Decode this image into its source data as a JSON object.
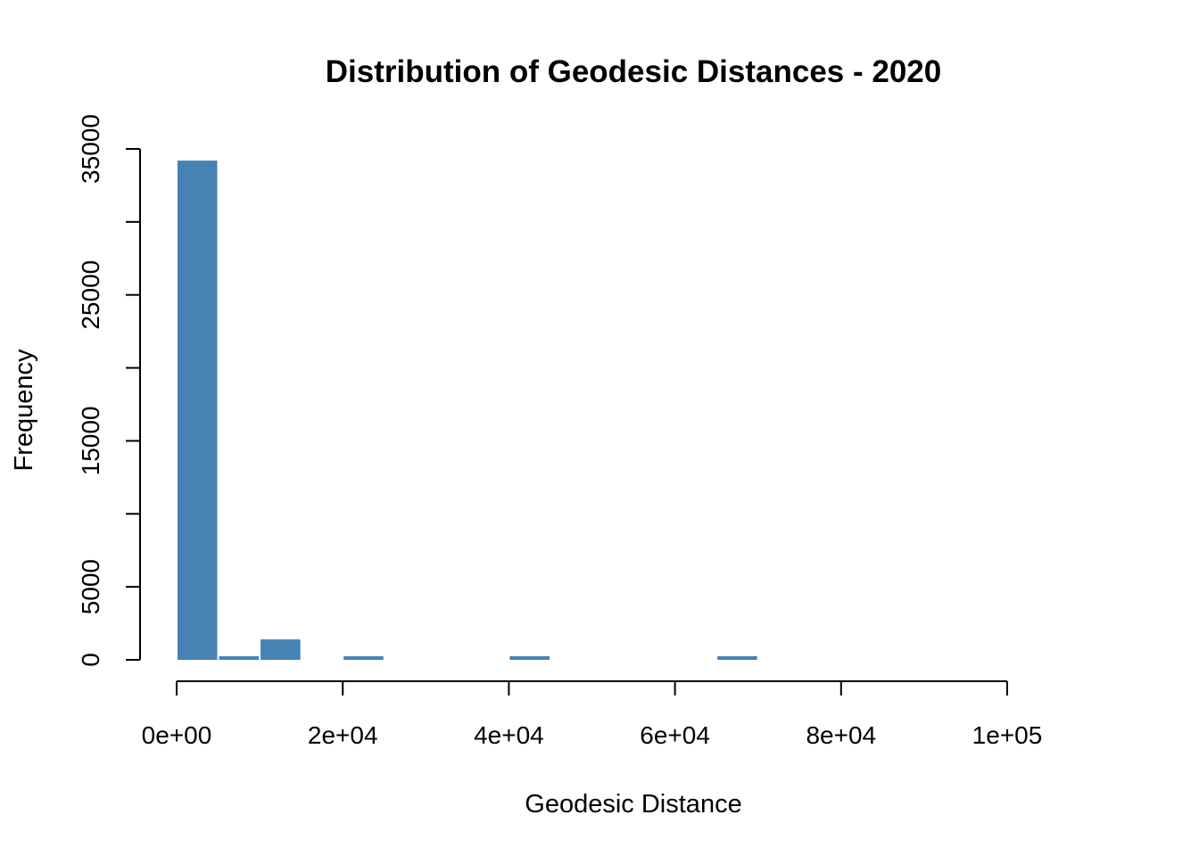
{
  "chart_data": {
    "type": "bar",
    "title": "Distribution of Geodesic Distances - 2020",
    "xlabel": "Geodesic Distance",
    "ylabel": "Frequency",
    "bar_color": "#4682B4",
    "bin_width": 5000,
    "bins": [
      {
        "start": 0,
        "end": 5000,
        "count": 34200
      },
      {
        "start": 5000,
        "end": 10000,
        "count": 250
      },
      {
        "start": 10000,
        "end": 15000,
        "count": 1400
      },
      {
        "start": 15000,
        "end": 20000,
        "count": 0
      },
      {
        "start": 20000,
        "end": 25000,
        "count": 250
      },
      {
        "start": 25000,
        "end": 30000,
        "count": 0
      },
      {
        "start": 30000,
        "end": 35000,
        "count": 0
      },
      {
        "start": 35000,
        "end": 40000,
        "count": 0
      },
      {
        "start": 40000,
        "end": 45000,
        "count": 250
      },
      {
        "start": 45000,
        "end": 50000,
        "count": 0
      },
      {
        "start": 50000,
        "end": 55000,
        "count": 0
      },
      {
        "start": 55000,
        "end": 60000,
        "count": 0
      },
      {
        "start": 60000,
        "end": 65000,
        "count": 0
      },
      {
        "start": 65000,
        "end": 70000,
        "count": 250
      }
    ],
    "xlim": [
      0,
      100000
    ],
    "ylim": [
      0,
      35000
    ],
    "x_ticks": [
      0,
      20000,
      40000,
      60000,
      80000,
      100000
    ],
    "x_tick_labels": [
      "0e+00",
      "2e+04",
      "4e+04",
      "6e+04",
      "8e+04",
      "1e+05"
    ],
    "y_ticks": [
      0,
      5000,
      10000,
      15000,
      20000,
      25000,
      30000,
      35000
    ],
    "y_tick_labels": [
      "0",
      "5000",
      "",
      "15000",
      "",
      "25000",
      "",
      "35000"
    ],
    "grid": false,
    "legend": "none"
  }
}
